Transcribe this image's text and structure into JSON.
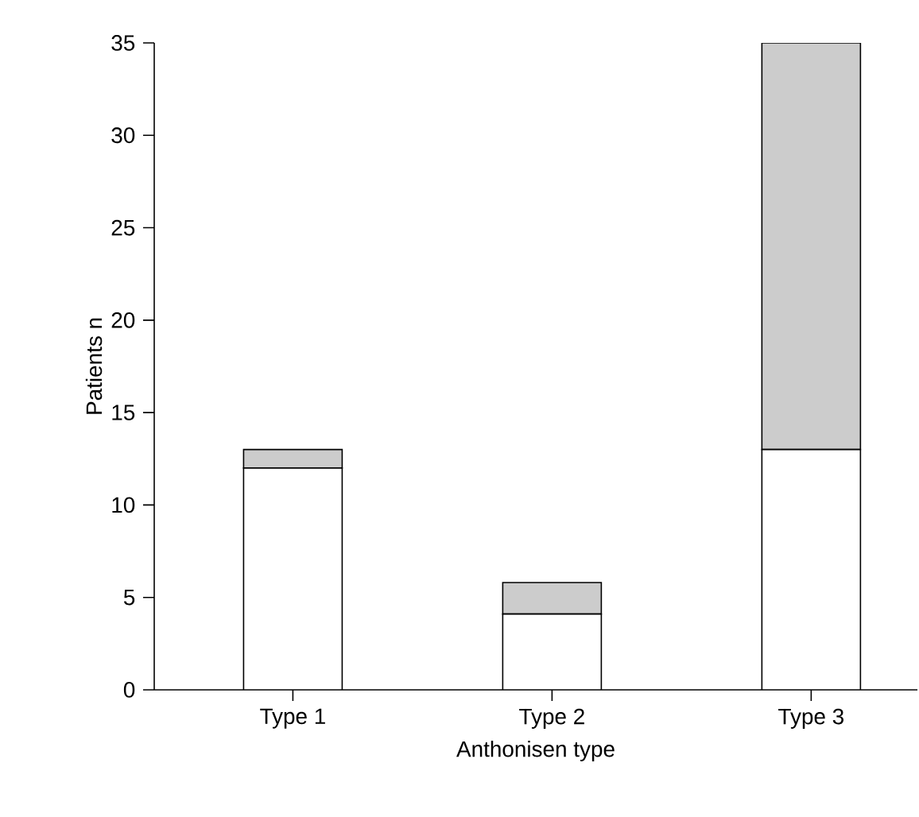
{
  "chart_data": {
    "type": "bar",
    "stacked": true,
    "xlabel": "Anthonisen type",
    "ylabel": "Patients  n",
    "categories": [
      "Type 1",
      "Type 2",
      "Type 3"
    ],
    "series": [
      {
        "color": "#ffffff",
        "values": [
          12,
          4.1,
          13
        ]
      },
      {
        "color": "#cccccc",
        "values": [
          1,
          1.7,
          22
        ]
      }
    ],
    "ylim": [
      0,
      35
    ],
    "yticks": [
      0,
      5,
      10,
      15,
      20,
      25,
      30,
      35
    ]
  }
}
